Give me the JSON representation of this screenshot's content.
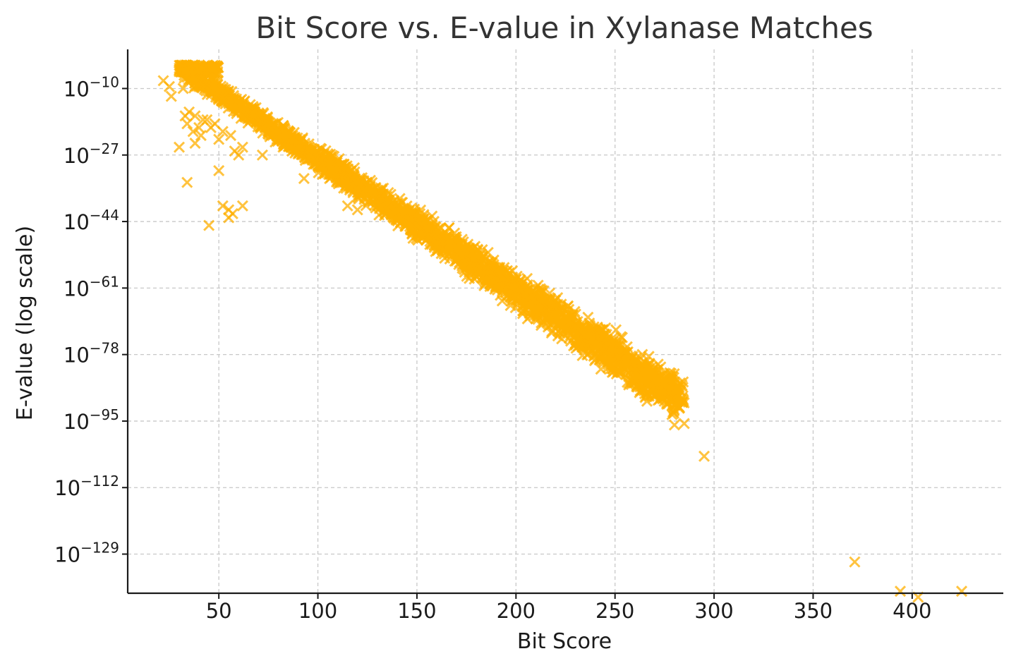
{
  "chart_data": {
    "type": "scatter",
    "title": "Bit Score vs. E-value in Xylanase Matches",
    "xlabel": "Bit Score",
    "ylabel": "E-value (log scale)",
    "xlim": [
      4,
      446
    ],
    "ylim_log10": [
      -139,
      0
    ],
    "y_scale": "log",
    "grid": true,
    "marker": "x",
    "color": "#FFB000",
    "x_ticks": [
      {
        "value": 50,
        "label": "50"
      },
      {
        "value": 100,
        "label": "100"
      },
      {
        "value": 150,
        "label": "150"
      },
      {
        "value": 200,
        "label": "200"
      },
      {
        "value": 250,
        "label": "250"
      },
      {
        "value": 300,
        "label": "300"
      },
      {
        "value": 350,
        "label": "350"
      },
      {
        "value": 400,
        "label": "400"
      }
    ],
    "y_ticks": [
      {
        "log10": -10,
        "base": "10",
        "exp": "−10"
      },
      {
        "log10": -27,
        "base": "10",
        "exp": "−27"
      },
      {
        "log10": -44,
        "base": "10",
        "exp": "−44"
      },
      {
        "log10": -61,
        "base": "10",
        "exp": "−61"
      },
      {
        "log10": -78,
        "base": "10",
        "exp": "−78"
      },
      {
        "log10": -95,
        "base": "10",
        "exp": "−95"
      },
      {
        "log10": -112,
        "base": "10",
        "exp": "−112"
      },
      {
        "log10": -129,
        "base": "10",
        "exp": "−129"
      }
    ],
    "main_band": {
      "description_units": "log10 E-value ≈ a + b·bitscore",
      "start": {
        "x": 30,
        "log10_y": -4.5
      },
      "end": {
        "x": 285,
        "log10_y": -90
      },
      "spread_log10": 6,
      "approx_points": 2500
    },
    "series": [
      {
        "points": [
          [
            22,
            -8
          ],
          [
            25,
            -9.5
          ],
          [
            26,
            -12
          ],
          [
            32,
            -10
          ],
          [
            33,
            -17
          ],
          [
            35,
            -16
          ],
          [
            34,
            -19
          ],
          [
            38,
            -17
          ],
          [
            42,
            -18
          ],
          [
            37,
            -21
          ],
          [
            41,
            -22
          ],
          [
            44,
            -18
          ],
          [
            46,
            -20
          ],
          [
            52,
            -21
          ],
          [
            50,
            -23
          ],
          [
            56,
            -22
          ],
          [
            58,
            -26
          ],
          [
            62,
            -25
          ],
          [
            38,
            -24
          ],
          [
            30,
            -25
          ],
          [
            40,
            -20
          ],
          [
            48,
            -19
          ],
          [
            34,
            -34
          ],
          [
            50,
            -31
          ],
          [
            60,
            -27
          ],
          [
            72,
            -27
          ],
          [
            52,
            -40
          ],
          [
            55,
            -41
          ],
          [
            57,
            -42
          ],
          [
            62,
            -40
          ],
          [
            55,
            -43
          ],
          [
            45,
            -45
          ],
          [
            93,
            -33
          ],
          [
            115,
            -40
          ],
          [
            120,
            -41
          ],
          [
            270,
            -85
          ],
          [
            275,
            -87
          ],
          [
            265,
            -88
          ],
          [
            280,
            -96
          ],
          [
            295,
            -104
          ],
          [
            371,
            -131
          ],
          [
            394,
            -138.5
          ],
          [
            403,
            -140
          ],
          [
            425,
            -138.5
          ]
        ]
      }
    ]
  }
}
